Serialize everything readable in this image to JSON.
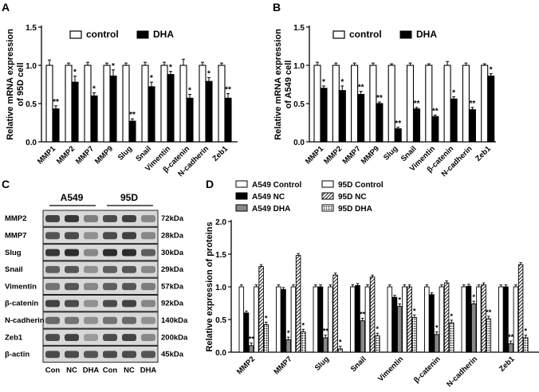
{
  "panels": {
    "A": "A",
    "B": "B",
    "C": "C",
    "D": "D"
  },
  "chart_data": [
    {
      "id": "A",
      "type": "bar",
      "ylabel_lines": [
        "Relative mRNA expression",
        "of 95D cell"
      ],
      "ylim": [
        0.0,
        1.5
      ],
      "yticks": [
        "0.0",
        "0.5",
        "1.0",
        "1.5"
      ],
      "categories": [
        "MMP1",
        "MMP2",
        "MMP7",
        "MMP9",
        "Slug",
        "Snail",
        "Vimentin",
        "β-catenin",
        "N-cadherin",
        "Zeb1"
      ],
      "legend": [
        "control",
        "DHA"
      ],
      "series": [
        {
          "name": "control",
          "values": [
            1.0,
            1.0,
            1.0,
            1.0,
            1.0,
            1.0,
            1.0,
            1.0,
            1.0,
            1.0
          ],
          "errors": [
            0.07,
            0.03,
            0.04,
            0.03,
            0.03,
            0.04,
            0.04,
            0.08,
            0.04,
            0.03
          ]
        },
        {
          "name": "DHA",
          "values": [
            0.43,
            0.78,
            0.6,
            0.86,
            0.27,
            0.72,
            0.88,
            0.57,
            0.79,
            0.57
          ],
          "errors": [
            0.04,
            0.08,
            0.04,
            0.08,
            0.03,
            0.06,
            0.04,
            0.05,
            0.05,
            0.06
          ]
        }
      ],
      "annotations": [
        "**",
        "*",
        "*",
        "*",
        "**",
        "*",
        "*",
        "*",
        "*",
        "**"
      ]
    },
    {
      "id": "B",
      "type": "bar",
      "ylabel_lines": [
        "Relative mRNA expression",
        "of A549 cell"
      ],
      "ylim": [
        0.0,
        1.5
      ],
      "yticks": [
        "0.0",
        "0.5",
        "1.0",
        "1.5"
      ],
      "categories": [
        "MMP1",
        "MMP2",
        "MMP7",
        "MMP9",
        "Slug",
        "Snail",
        "Vimentin",
        "β-catenin",
        "N-cadherin",
        "Zeb1"
      ],
      "legend": [
        "control",
        "DHA"
      ],
      "series": [
        {
          "name": "control",
          "values": [
            1.0,
            1.0,
            1.0,
            1.0,
            1.0,
            1.0,
            1.0,
            1.0,
            1.0,
            1.0
          ],
          "errors": [
            0.04,
            0.03,
            0.03,
            0.03,
            0.02,
            0.03,
            0.02,
            0.05,
            0.03,
            0.02
          ]
        },
        {
          "name": "DHA",
          "values": [
            0.7,
            0.67,
            0.62,
            0.5,
            0.17,
            0.43,
            0.33,
            0.56,
            0.42,
            0.86
          ]
        },
        {
          "name": "DHA_err",
          "values": [
            0.03,
            0.06,
            0.04,
            0.02,
            0.02,
            0.02,
            0.02,
            0.03,
            0.03,
            0.03
          ]
        }
      ],
      "annotations": [
        "*",
        "*",
        "**",
        "**",
        "**",
        "**",
        "**",
        "*",
        "**",
        "*"
      ]
    },
    {
      "id": "D",
      "type": "bar",
      "ylabel_lines": [
        "Relative expression of proteins"
      ],
      "ylim": [
        0.0,
        2.0
      ],
      "yticks": [
        "0.0",
        "0.5",
        "1.0",
        "1.5",
        "2.0"
      ],
      "categories": [
        "MMP2",
        "MMP7",
        "Slug",
        "Snail",
        "Vimentin",
        "β-catenin",
        "N-cadherin",
        "Zeb1"
      ],
      "legend": [
        "A549 Control",
        "A549 NC",
        "A549 DHA",
        "95D Control",
        "95D NC",
        "95D DHA"
      ],
      "series": [
        {
          "name": "A549 Control",
          "values": [
            1.0,
            1.0,
            1.0,
            1.0,
            1.0,
            1.0,
            1.0,
            1.0
          ]
        },
        {
          "name": "A549 NC",
          "values": [
            0.6,
            0.96,
            1.0,
            1.02,
            0.84,
            0.88,
            1.01,
            1.0
          ]
        },
        {
          "name": "A549 DHA",
          "values": [
            0.1,
            0.19,
            0.22,
            0.48,
            0.7,
            0.27,
            0.74,
            0.13
          ]
        },
        {
          "name": "95D Control",
          "values": [
            1.0,
            1.0,
            1.0,
            1.0,
            1.0,
            1.0,
            1.0,
            1.0
          ]
        },
        {
          "name": "95D NC",
          "values": [
            1.31,
            1.48,
            1.18,
            1.15,
            1.0,
            1.06,
            1.03,
            1.34
          ]
        },
        {
          "name": "95D DHA",
          "values": [
            0.42,
            0.31,
            0.05,
            0.25,
            0.53,
            0.45,
            0.51,
            0.22
          ]
        }
      ],
      "annotations": {
        "A549 DHA": [
          "**",
          "*",
          "**",
          "**",
          "*",
          "*",
          "*",
          "**"
        ],
        "95D DHA": [
          "*",
          "*",
          "*",
          "*",
          "*",
          "*",
          "**",
          "*"
        ]
      }
    }
  ],
  "blot": {
    "groups": [
      "A549",
      "95D"
    ],
    "lanes": [
      "Con",
      "NC",
      "DHA",
      "Con",
      "NC",
      "DHA"
    ],
    "rows": [
      {
        "protein": "MMP2",
        "size": "72kDa"
      },
      {
        "protein": "MMP7",
        "size": "28kDa"
      },
      {
        "protein": "Slug",
        "size": "30kDa"
      },
      {
        "protein": "Snail",
        "size": "29kDa"
      },
      {
        "protein": "Vimentin",
        "size": "57kDa"
      },
      {
        "protein": "β-catenin",
        "size": "92kDa"
      },
      {
        "protein": "N-cadherin",
        "size": "140kDa"
      },
      {
        "protein": "Zeb1",
        "size": "200kDa"
      },
      {
        "protein": "β-actin",
        "size": "45kDa"
      }
    ],
    "intensity": [
      [
        0.85,
        0.9,
        0.55,
        0.8,
        0.85,
        0.5
      ],
      [
        0.75,
        0.8,
        0.45,
        0.8,
        0.85,
        0.5
      ],
      [
        0.9,
        0.95,
        0.5,
        0.95,
        0.95,
        0.7
      ],
      [
        0.7,
        0.75,
        0.45,
        0.7,
        0.75,
        0.5
      ],
      [
        0.6,
        0.75,
        0.5,
        0.7,
        0.75,
        0.55
      ],
      [
        0.85,
        0.8,
        0.45,
        0.8,
        0.85,
        0.5
      ],
      [
        0.65,
        0.6,
        0.45,
        0.6,
        0.65,
        0.45
      ],
      [
        0.8,
        0.85,
        0.4,
        0.8,
        0.85,
        0.5
      ],
      [
        0.8,
        0.8,
        0.75,
        0.8,
        0.8,
        0.75
      ]
    ]
  }
}
